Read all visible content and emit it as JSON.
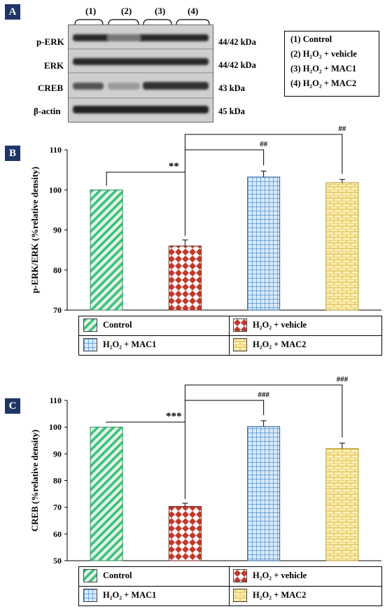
{
  "panels": {
    "a": "A",
    "b": "B",
    "c": "C"
  },
  "blot": {
    "lanes": [
      "(1)",
      "(2)",
      "(3)",
      "(4)"
    ],
    "rows": [
      {
        "label": "p-ERK",
        "kda": "44/42 kDa"
      },
      {
        "label": "ERK",
        "kda": "44/42 kDa"
      },
      {
        "label": "CREB",
        "kda": "43 kDa"
      },
      {
        "label": "β-actin",
        "kda": "45 kDa"
      }
    ],
    "legend": [
      "(1)  Control",
      "(2)  H₂O₂ + vehicle",
      "(3)  H₂O₂ + MAC1",
      "(4)  H₂O₂ + MAC2"
    ]
  },
  "legend_entries": [
    "Control",
    "H₂O₂ + vehicle",
    "H₂O₂ + MAC1",
    "H₂O₂ + MAC2"
  ],
  "colors": {
    "control": "#3fbf7a",
    "vehicle": "#c0392b",
    "mac1": "#3a7fc7",
    "mac2": "#e6c84a",
    "panel_bg": "#1f3566"
  },
  "chart_data": [
    {
      "type": "bar",
      "ylabel": "p-ERK/ERK (%relative density)",
      "ylim": [
        70,
        110
      ],
      "yticks": [
        70,
        80,
        90,
        100,
        110
      ],
      "categories": [
        "Control",
        "H₂O₂ + vehicle",
        "H₂O₂ + MAC1",
        "H₂O₂ + MAC2"
      ],
      "values": [
        100,
        86,
        103.2,
        101.8
      ],
      "errors": [
        0,
        1.5,
        1.5,
        0.8
      ],
      "annotations": [
        {
          "from": 0,
          "to": 1,
          "text": "**"
        },
        {
          "from": 1,
          "to": 2,
          "text": "##"
        },
        {
          "from": 1,
          "to": 3,
          "text": "##"
        }
      ]
    },
    {
      "type": "bar",
      "ylabel": "CREB (%relative density)",
      "ylim": [
        50,
        110
      ],
      "yticks": [
        50,
        60,
        70,
        80,
        90,
        100,
        110
      ],
      "categories": [
        "Control",
        "H₂O₂ + vehicle",
        "H₂O₂ + MAC1",
        "H₂O₂ + MAC2"
      ],
      "values": [
        100,
        70.3,
        100.2,
        92
      ],
      "errors": [
        0,
        1.2,
        2.2,
        2
      ],
      "annotations": [
        {
          "from": 0,
          "to": 1,
          "text": "***"
        },
        {
          "from": 1,
          "to": 2,
          "text": "###"
        },
        {
          "from": 1,
          "to": 3,
          "text": "###"
        }
      ]
    }
  ]
}
